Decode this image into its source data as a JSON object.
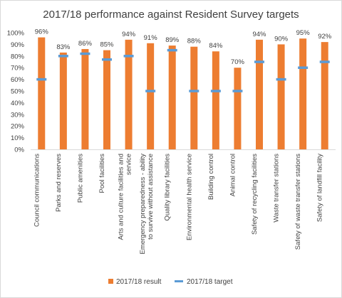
{
  "chart_data": {
    "type": "bar",
    "title": "2017/18 performance  against Resident Survey targets",
    "categories": [
      [
        "Council communications"
      ],
      [
        "Parks and reserves"
      ],
      [
        "Public amenities"
      ],
      [
        "Pool facilities"
      ],
      [
        "Arts and culture facilities and",
        "service"
      ],
      [
        "Emergency preparedness - ability",
        "to survive without assistance"
      ],
      [
        "Quality library facilities"
      ],
      [
        "Environmental health service"
      ],
      [
        "Building control"
      ],
      [
        "Animal control"
      ],
      [
        "Safety of recycling facilities"
      ],
      [
        "Waste transfer stations"
      ],
      [
        "Safety of waste transfer stations"
      ],
      [
        "Safety of landfill facility"
      ]
    ],
    "series": [
      {
        "name": "2017/18 result",
        "kind": "bar",
        "color": "#ed7d31",
        "values": [
          96,
          83,
          86,
          85,
          94,
          91,
          89,
          88,
          84,
          70,
          94,
          90,
          95,
          92
        ],
        "labels": [
          "96%",
          "83%",
          "86%",
          "85%",
          "94%",
          "91%",
          "89%",
          "88%",
          "84%",
          "70%",
          "94%",
          "90%",
          "95%",
          "92%"
        ]
      },
      {
        "name": "2017/18 target",
        "kind": "marker",
        "color": "#5b9bd5",
        "values": [
          60,
          80,
          82,
          77,
          80,
          50,
          85,
          50,
          50,
          50,
          75,
          60,
          70,
          75
        ]
      }
    ],
    "ylim": [
      0,
      100
    ],
    "yticks": [
      "0%",
      "10%",
      "20%",
      "30%",
      "40%",
      "50%",
      "60%",
      "70%",
      "80%",
      "90%",
      "100%"
    ],
    "xlabel": "",
    "ylabel": "",
    "grid": false,
    "legend_position": "bottom"
  }
}
